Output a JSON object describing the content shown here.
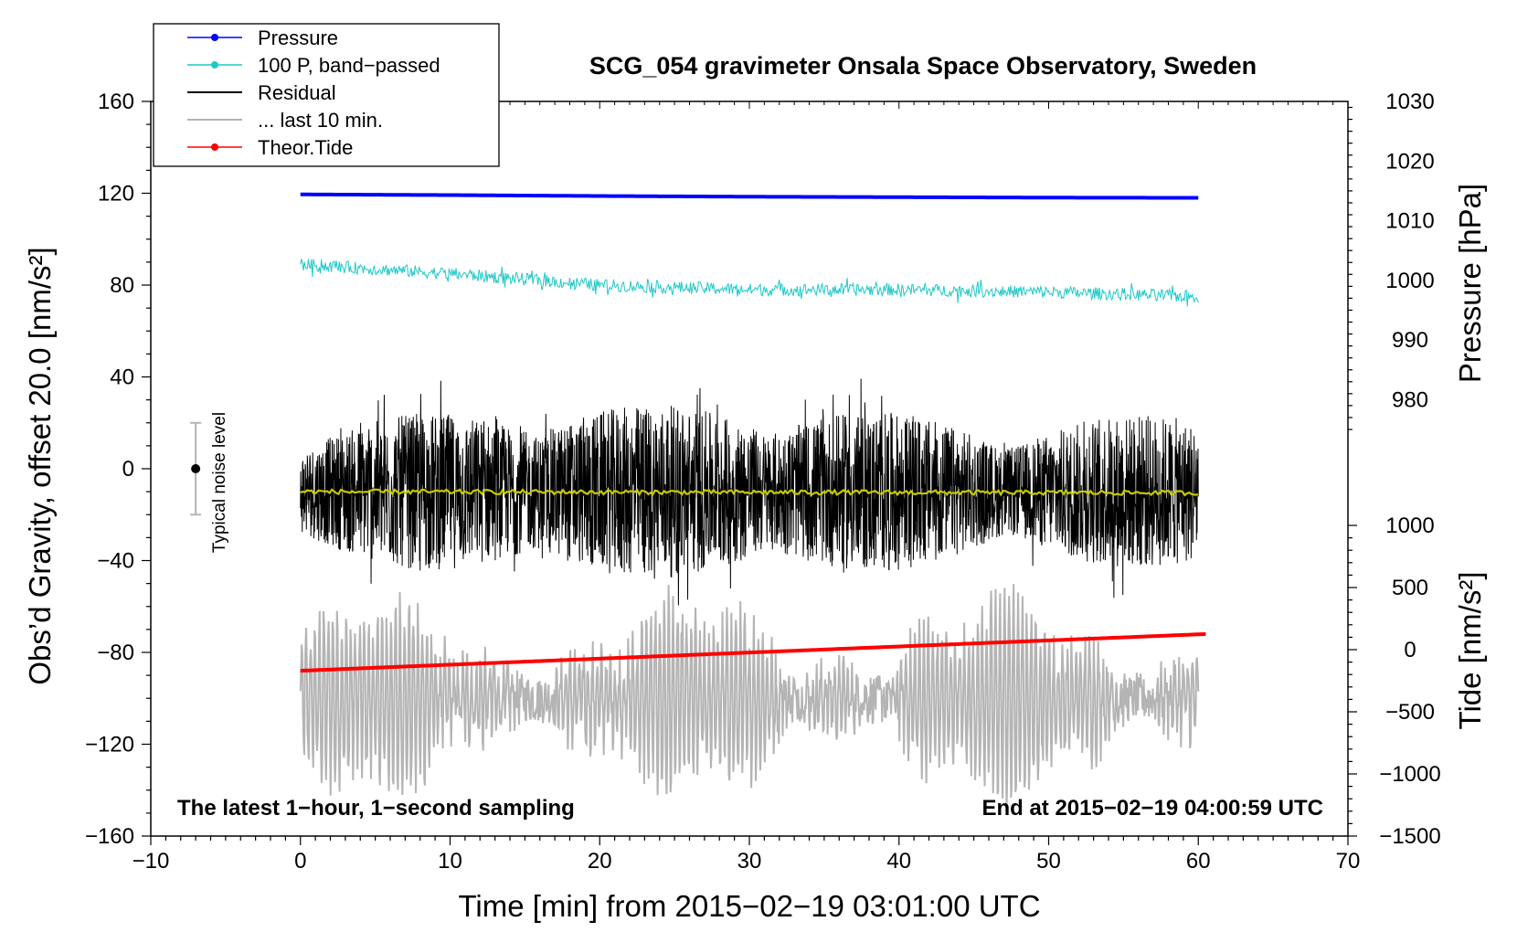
{
  "chart_data": {
    "type": "line",
    "title": "SCG_054 gravimeter Onsala Space Observatory, Sweden",
    "xlabel": "Time [min] from 2015−02−19 03:01:00 UTC",
    "ylabel_left": "Obs’d Gravity, offset 20.0 [nm/s²]",
    "ylabel_right_pressure": "Pressure [hPa]",
    "ylabel_right_tide": "Tide [nm/s²]",
    "xlim": [
      -10,
      70
    ],
    "ylim": [
      -160,
      160
    ],
    "x_ticks": [
      "−10",
      "0",
      "10",
      "20",
      "30",
      "40",
      "50",
      "60",
      "70"
    ],
    "y_ticks": [
      "160",
      "120",
      "80",
      "40",
      "0",
      "−40",
      "−80",
      "−120",
      "−160"
    ],
    "pressure_ticks": [
      "1030",
      "1020",
      "1010",
      "1000",
      "990",
      "980"
    ],
    "pressure_range": [
      975,
      1030
    ],
    "tide_ticks": [
      "1000",
      "500",
      "0",
      "−500",
      "−1000",
      "−1500"
    ],
    "tide_range": [
      -1500,
      1000
    ],
    "annotation_left": "The latest 1−hour, 1−second sampling",
    "annotation_right": "End at 2015−02−19 04:00:59 UTC",
    "noise_label": "Typical noise level",
    "noise_bar": {
      "x": -7,
      "center": 0,
      "half_width": 20
    },
    "legend": [
      {
        "label": "Pressure",
        "color": "#0000ff",
        "marker": true
      },
      {
        "label": "100 P, band−passed",
        "color": "#20c8c8",
        "marker": true
      },
      {
        "label": "Residual",
        "color": "#000000",
        "marker": false
      },
      {
        "label": "... last 10 min.",
        "color": "#b4b4b4",
        "marker": false
      },
      {
        "label": "Theor.Tide",
        "color": "#ff0000",
        "marker": true
      }
    ],
    "series": [
      {
        "name": "Pressure",
        "color": "#0000ff",
        "x": [
          0,
          10,
          20,
          30,
          40,
          50,
          60
        ],
        "values": [
          119.5,
          119.2,
          118.8,
          118.5,
          118.3,
          118.1,
          118.0
        ]
      },
      {
        "name": "100 P, band-passed",
        "color": "#20c8c8",
        "x": [
          0,
          10,
          20,
          30,
          40,
          50,
          60
        ],
        "values": [
          89,
          85,
          80,
          78,
          78,
          77,
          75
        ],
        "noise_amplitude": 3
      },
      {
        "name": "Residual",
        "color": "#000000",
        "x": [
          0,
          60
        ],
        "values": [
          -10,
          -10
        ],
        "noise_amplitude": 40
      },
      {
        "name": "Residual smoothed",
        "color": "#c8c800",
        "x": [
          0,
          60
        ],
        "values": [
          -10,
          -10.5
        ]
      },
      {
        "name": "... last 10 min.",
        "color": "#b4b4b4",
        "x": [
          0,
          60
        ],
        "values": [
          -100,
          -100
        ],
        "noise_amplitude": 45
      },
      {
        "name": "Theor.Tide",
        "color": "#ff0000",
        "x": [
          0,
          60.5
        ],
        "values": [
          -88,
          -72
        ]
      }
    ]
  }
}
